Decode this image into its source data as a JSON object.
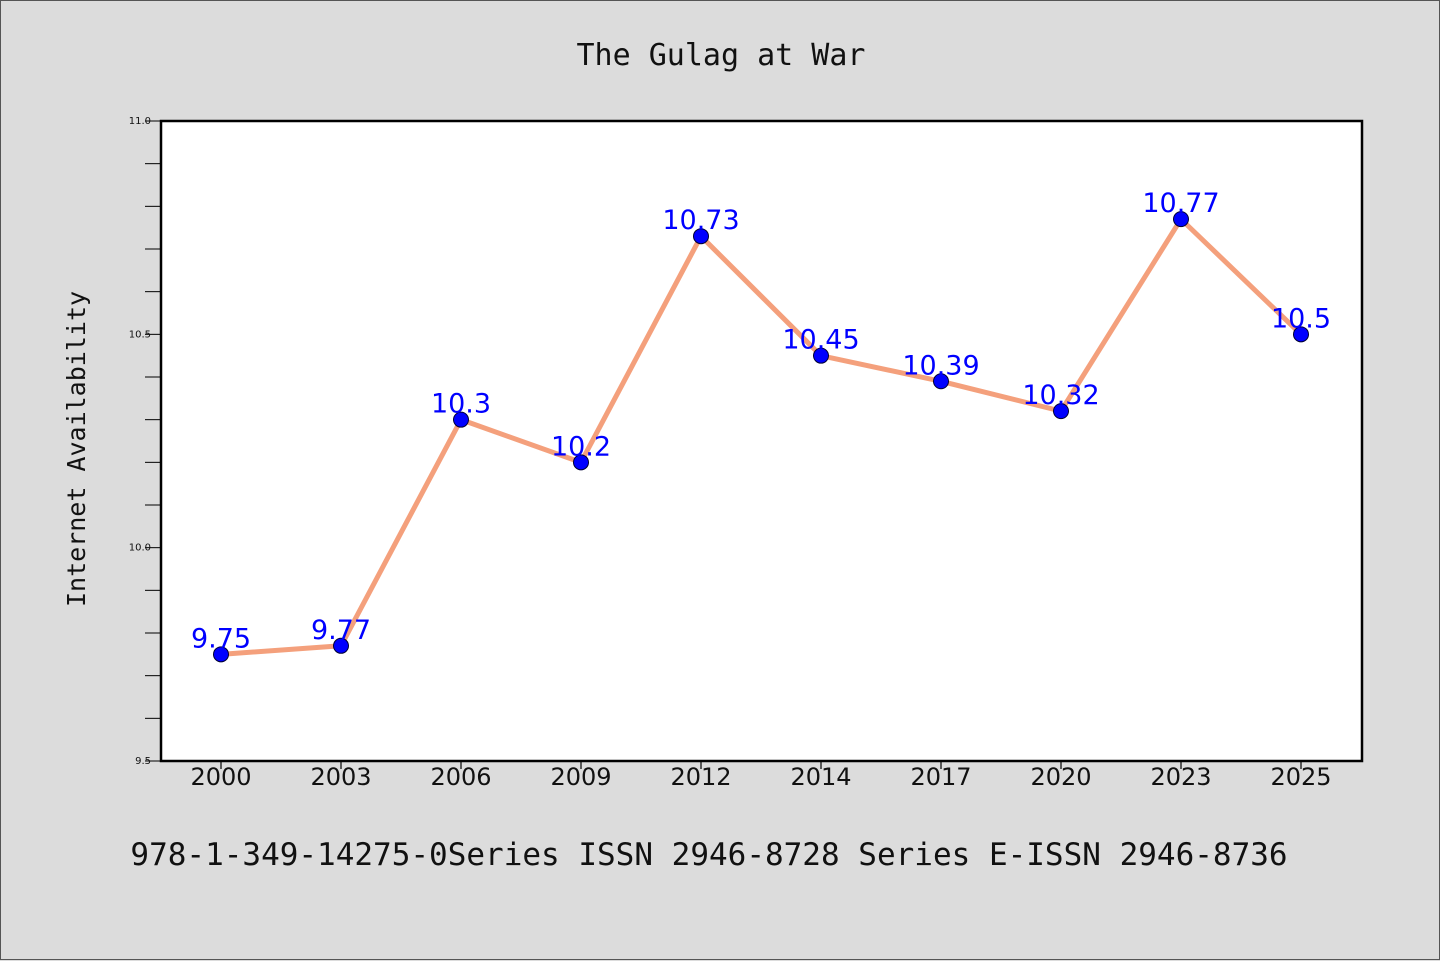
{
  "chart_data": {
    "type": "line",
    "title": "The Gulag at War",
    "xlabel": "",
    "ylabel": "Internet Availability",
    "categories": [
      "2000",
      "2003",
      "2006",
      "2009",
      "2012",
      "2014",
      "2017",
      "2020",
      "2023",
      "2025"
    ],
    "series": [
      {
        "values": [
          9.75,
          9.77,
          10.3,
          10.2,
          10.73,
          10.45,
          10.39,
          10.32,
          10.77,
          10.5
        ],
        "labels": [
          "9.75",
          "9.77",
          "10.3",
          "10.2",
          "10.73",
          "10.45",
          "10.39",
          "10.32",
          "10.77",
          "10.5"
        ],
        "line_color": "#f4a07c",
        "marker_color": "#0000ff"
      }
    ],
    "ylim": [
      9.5,
      11.0
    ],
    "yticks": [
      "9.5",
      "10.0",
      "10.5",
      "11.0"
    ],
    "y_minor_step": 0.1,
    "grid": false,
    "legend": "none"
  },
  "footer": {
    "text": "978-1-349-14275-0Series ISSN 2946-8728 Series E-ISSN 2946-8736"
  },
  "colors": {
    "background": "#dcdcdc",
    "plot_background": "#ffffff",
    "axis": "#000000"
  }
}
